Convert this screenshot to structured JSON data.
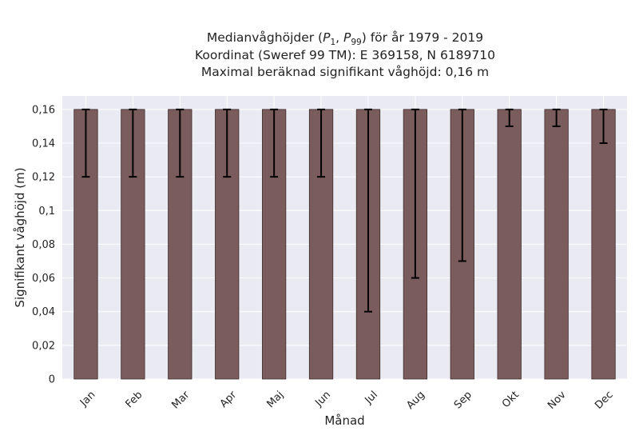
{
  "chart_data": {
    "type": "bar",
    "title_lines": [
      "Medianvåghöjder (P1, P99) för år 1979 - 2019",
      "Koordinat (Sweref 99 TM): E 369158, N 6189710",
      "Maximal beräknad signifikant våghöjd: 0,16 m"
    ],
    "title_math": {
      "prefix": "Medianvåghöjder (",
      "p1_base": "P",
      "p1_sub": "1",
      "separator": ", ",
      "p99_base": "P",
      "p99_sub": "99",
      "suffix": ") för år 1979 - 2019"
    },
    "xlabel": "Månad",
    "ylabel": "Signifikant våghöjd (m)",
    "categories": [
      "Jan",
      "Feb",
      "Mar",
      "Apr",
      "Maj",
      "Jun",
      "Jul",
      "Aug",
      "Sep",
      "Okt",
      "Nov",
      "Dec"
    ],
    "values": [
      0.16,
      0.16,
      0.16,
      0.16,
      0.16,
      0.16,
      0.16,
      0.16,
      0.16,
      0.16,
      0.16,
      0.16
    ],
    "error_low": [
      0.12,
      0.12,
      0.12,
      0.12,
      0.12,
      0.12,
      0.04,
      0.06,
      0.07,
      0.15,
      0.15,
      0.14
    ],
    "error_high": [
      0.16,
      0.16,
      0.16,
      0.16,
      0.16,
      0.16,
      0.16,
      0.16,
      0.16,
      0.16,
      0.16,
      0.16
    ],
    "ylim": [
      0,
      0.168
    ],
    "yticks": [
      0,
      0.02,
      0.04,
      0.06,
      0.08,
      0.1,
      0.12,
      0.14,
      0.16
    ],
    "ytick_labels": [
      "0",
      "0,02",
      "0,04",
      "0,06",
      "0,08",
      "0,1",
      "0,12",
      "0,14",
      "0,16"
    ],
    "grid": true,
    "colors": {
      "bar": "#7b5c5c",
      "bar_edge": "#3d2c2c",
      "error": "#000000",
      "plot_bg": "#eaeaf2",
      "grid": "#ffffff"
    }
  }
}
